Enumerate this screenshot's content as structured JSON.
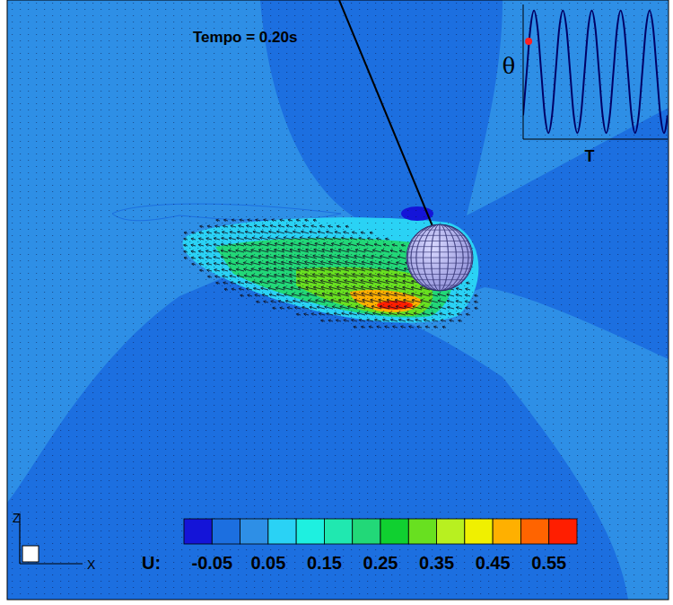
{
  "title": "Tempo = 0.20s",
  "colorbar": {
    "label": "U:",
    "range": [
      -0.1,
      0.6
    ],
    "ticks": [
      -0.05,
      0.05,
      0.15,
      0.25,
      0.35,
      0.45,
      0.55
    ],
    "colors": [
      "#1414d8",
      "#1c6fe0",
      "#2e8fe6",
      "#2ad2f5",
      "#1ef0e0",
      "#20e8b0",
      "#22d878",
      "#10d030",
      "#68e020",
      "#b8f020",
      "#f0f000",
      "#ffb000",
      "#ff6400",
      "#ff1e00"
    ]
  },
  "axes": {
    "vertical": "Z",
    "horizontal": "X"
  },
  "chart_data": {
    "type": "line",
    "x_label": "T",
    "y_label": "θ",
    "x": [
      0,
      0.125,
      0.25,
      0.375,
      0.5,
      0.625,
      0.75,
      0.875,
      1,
      1.125,
      1.25,
      1.375,
      1.5,
      1.625,
      1.75,
      1.875,
      2,
      2.125,
      2.25,
      2.375,
      2.5,
      2.625,
      2.75,
      2.875,
      3,
      3.125,
      3.25,
      3.375,
      3.5,
      3.625,
      3.75,
      3.875,
      4,
      4.125,
      4.25,
      4.375,
      4.5,
      4.625,
      4.75,
      4.875,
      5
    ],
    "values": [
      -0.71,
      0,
      0.71,
      1,
      0.71,
      0,
      -0.71,
      -1,
      -0.71,
      0,
      0.71,
      1,
      0.71,
      0,
      -0.71,
      -1,
      -0.71,
      0,
      0.71,
      1,
      0.71,
      0,
      -0.71,
      -1,
      -0.71,
      0,
      0.71,
      1,
      0.71,
      0,
      -0.71,
      -1,
      -0.71,
      0,
      0.71,
      1,
      0.71,
      0,
      -0.71,
      -1,
      -0.71
    ],
    "color": "#000066",
    "xlim": [
      0,
      5
    ],
    "ylim": [
      -1.1,
      1.1
    ],
    "grid": false,
    "tick_labels": false,
    "marker": "none",
    "highlight": {
      "x": 0.19,
      "y": 0.5,
      "color": "#ff2020"
    }
  }
}
